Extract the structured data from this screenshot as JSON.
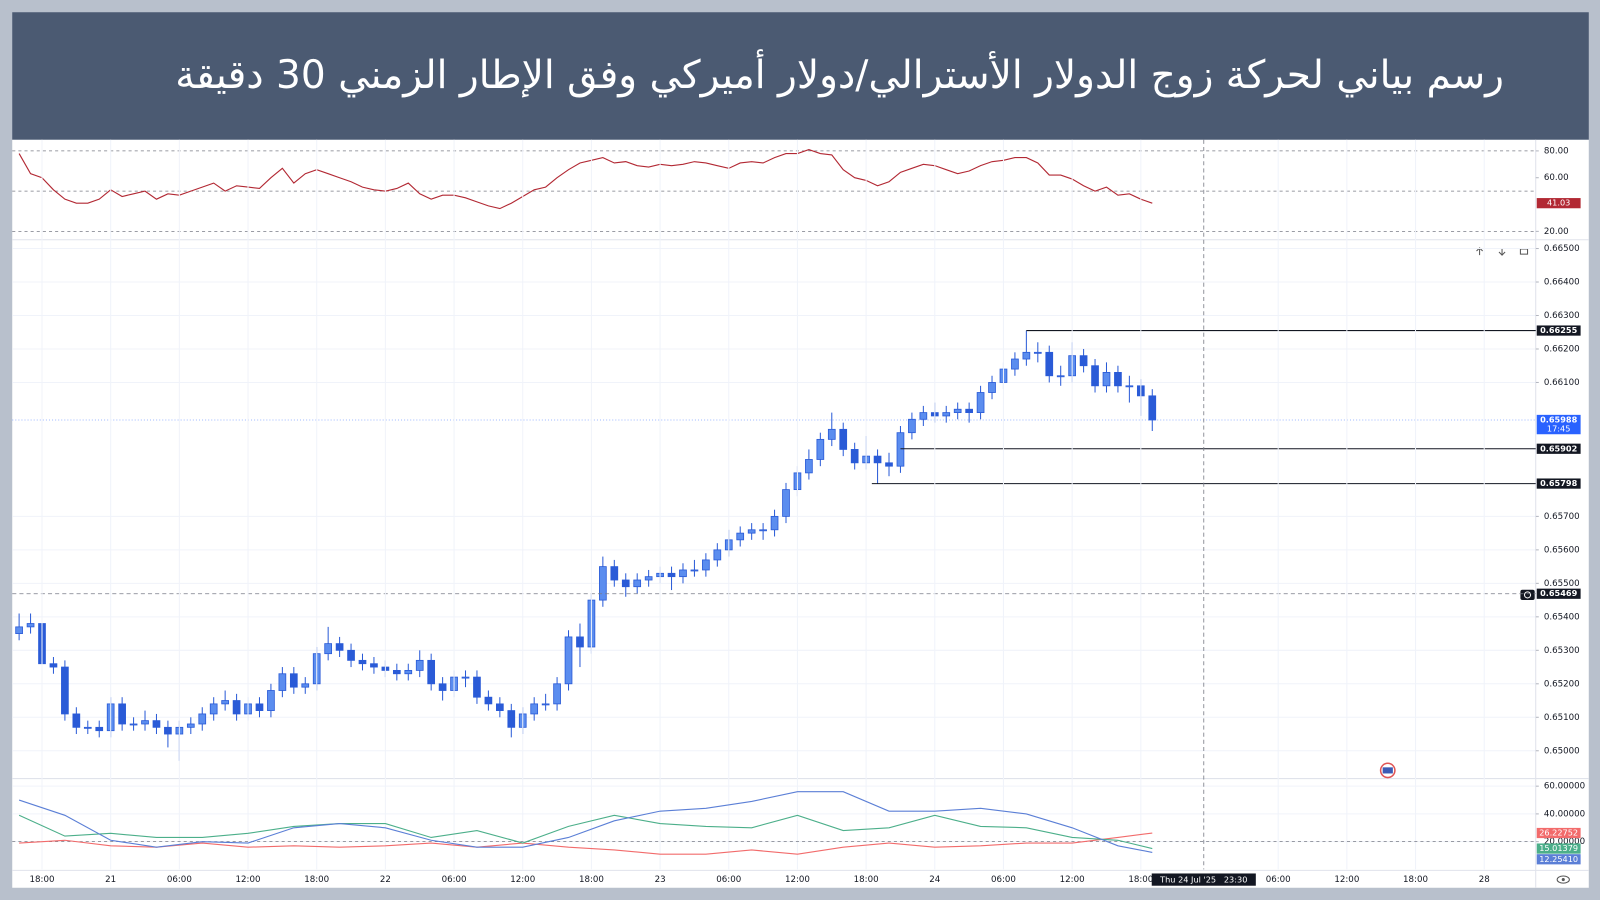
{
  "chart_data": [
    {
      "type": "candlestick",
      "title": "رسم بياني لحركة زوج الدولار الأسترالي/دولار أميركي وفق الإطار الزمني 30 دقيقة",
      "x": [
        -2,
        -1,
        0,
        1,
        2,
        3,
        4,
        5,
        6,
        7,
        8,
        9,
        10,
        11,
        12,
        13,
        14,
        15,
        16,
        17,
        18,
        19,
        20,
        21,
        22,
        23,
        24,
        25,
        26,
        27,
        28,
        29,
        30,
        31,
        32,
        33,
        34,
        35,
        36,
        37,
        38,
        39,
        40,
        41,
        42,
        43,
        44,
        45,
        46,
        47,
        48,
        49,
        50,
        51,
        52,
        53,
        54,
        55,
        56,
        57,
        58,
        59,
        60,
        61,
        62,
        63,
        64,
        65,
        66,
        67,
        68,
        69,
        70,
        71,
        72,
        73,
        74,
        75,
        76,
        77,
        78,
        79,
        80,
        81,
        82,
        83,
        84,
        85,
        86,
        87,
        88,
        89,
        90,
        91,
        92,
        93,
        94,
        95,
        96,
        97
      ],
      "open": [
        0.6535,
        0.6537,
        0.6538,
        0.6526,
        0.6525,
        0.6511,
        0.6507,
        0.6507,
        0.6506,
        0.6514,
        0.6508,
        0.6508,
        0.6509,
        0.6507,
        0.6505,
        0.6507,
        0.6508,
        0.6511,
        0.6514,
        0.6515,
        0.6511,
        0.6514,
        0.6512,
        0.6518,
        0.6523,
        0.6519,
        0.652,
        0.6529,
        0.6532,
        0.653,
        0.6527,
        0.6526,
        0.6525,
        0.6524,
        0.6523,
        0.6524,
        0.6527,
        0.652,
        0.6518,
        0.6522,
        0.6522,
        0.6516,
        0.6514,
        0.6512,
        0.6507,
        0.6511,
        0.6514,
        0.6514,
        0.652,
        0.6534,
        0.6531,
        0.6545,
        0.6555,
        0.6551,
        0.6549,
        0.6551,
        0.6552,
        0.6553,
        0.6552,
        0.6554,
        0.6554,
        0.6557,
        0.656,
        0.6563,
        0.6565,
        0.6566,
        0.6566,
        0.657,
        0.6578,
        0.6583,
        0.6587,
        0.6593,
        0.6596,
        0.659,
        0.6586,
        0.6588,
        0.6586,
        0.6585,
        0.6595,
        0.6599,
        0.6601,
        0.66,
        0.6601,
        0.6602,
        0.6601,
        0.6607,
        0.661,
        0.6614,
        0.6617,
        0.6619,
        0.6619,
        0.6612,
        0.6612,
        0.6618,
        0.6615,
        0.6609,
        0.6613,
        0.6609,
        0.6609,
        0.6606
      ],
      "high": [
        0.6541,
        0.6541,
        0.654,
        0.6528,
        0.6527,
        0.6513,
        0.6509,
        0.6509,
        0.6516,
        0.6516,
        0.651,
        0.6512,
        0.6511,
        0.6509,
        0.6509,
        0.651,
        0.6513,
        0.6516,
        0.6518,
        0.6517,
        0.6516,
        0.6516,
        0.652,
        0.6525,
        0.6525,
        0.6522,
        0.6531,
        0.6537,
        0.6534,
        0.6532,
        0.6529,
        0.6528,
        0.6527,
        0.6526,
        0.6526,
        0.653,
        0.6529,
        0.6522,
        0.6524,
        0.6524,
        0.6524,
        0.6518,
        0.6516,
        0.6514,
        0.6513,
        0.6516,
        0.6517,
        0.6522,
        0.6536,
        0.6538,
        0.6547,
        0.6558,
        0.6557,
        0.6553,
        0.6553,
        0.6554,
        0.6555,
        0.6555,
        0.6556,
        0.6557,
        0.6559,
        0.6562,
        0.6566,
        0.6567,
        0.6568,
        0.6568,
        0.6572,
        0.658,
        0.6585,
        0.659,
        0.6595,
        0.6601,
        0.6598,
        0.6592,
        0.6594,
        0.659,
        0.6589,
        0.6597,
        0.6601,
        0.6603,
        0.6604,
        0.6603,
        0.6604,
        0.6604,
        0.6609,
        0.6612,
        0.6616,
        0.6619,
        0.66255,
        0.6622,
        0.6621,
        0.6615,
        0.6622,
        0.662,
        0.6617,
        0.6616,
        0.6615,
        0.6612,
        0.6611,
        0.6608
      ],
      "low": [
        0.6533,
        0.6535,
        0.6524,
        0.6523,
        0.6509,
        0.6505,
        0.6505,
        0.6504,
        0.6504,
        0.6506,
        0.6506,
        0.6506,
        0.6505,
        0.6501,
        0.6497,
        0.6505,
        0.6506,
        0.6509,
        0.6512,
        0.6509,
        0.6509,
        0.651,
        0.651,
        0.6516,
        0.6517,
        0.6517,
        0.6518,
        0.6527,
        0.6528,
        0.6525,
        0.6524,
        0.6523,
        0.6522,
        0.6521,
        0.6521,
        0.6522,
        0.6518,
        0.6515,
        0.6516,
        0.6519,
        0.6514,
        0.6512,
        0.651,
        0.6504,
        0.6505,
        0.6509,
        0.6512,
        0.6512,
        0.6518,
        0.6525,
        0.6529,
        0.6543,
        0.6549,
        0.6546,
        0.6547,
        0.6549,
        0.655,
        0.6548,
        0.655,
        0.6552,
        0.6552,
        0.6555,
        0.6558,
        0.6561,
        0.6563,
        0.6563,
        0.6564,
        0.6568,
        0.6576,
        0.6581,
        0.6585,
        0.6591,
        0.6588,
        0.6584,
        0.6584,
        0.65798,
        0.6582,
        0.6583,
        0.6593,
        0.6597,
        0.6598,
        0.6598,
        0.6599,
        0.6598,
        0.6599,
        0.6605,
        0.6608,
        0.6612,
        0.6615,
        0.6616,
        0.661,
        0.6609,
        0.661,
        0.6613,
        0.6607,
        0.6607,
        0.6607,
        0.6604,
        0.66,
        0.65955
      ],
      "close": [
        0.6537,
        0.6538,
        0.6526,
        0.6525,
        0.6511,
        0.6507,
        0.6507,
        0.6506,
        0.6514,
        0.6508,
        0.6508,
        0.6509,
        0.6507,
        0.6505,
        0.6507,
        0.6508,
        0.6511,
        0.6514,
        0.6515,
        0.6511,
        0.6514,
        0.6512,
        0.6518,
        0.6523,
        0.6519,
        0.652,
        0.6529,
        0.6532,
        0.653,
        0.6527,
        0.6526,
        0.6525,
        0.6524,
        0.6523,
        0.6524,
        0.6527,
        0.652,
        0.6518,
        0.6522,
        0.6522,
        0.6516,
        0.6514,
        0.6512,
        0.6507,
        0.6511,
        0.6514,
        0.6514,
        0.652,
        0.6534,
        0.6531,
        0.6545,
        0.6555,
        0.6551,
        0.6549,
        0.6551,
        0.6552,
        0.6553,
        0.6552,
        0.6554,
        0.6554,
        0.6557,
        0.656,
        0.6563,
        0.6565,
        0.6566,
        0.6566,
        0.657,
        0.6578,
        0.6583,
        0.6587,
        0.6593,
        0.6596,
        0.659,
        0.6586,
        0.6588,
        0.6586,
        0.6585,
        0.6595,
        0.6599,
        0.6601,
        0.66,
        0.6601,
        0.6602,
        0.6601,
        0.6607,
        0.661,
        0.6614,
        0.6617,
        0.6619,
        0.6619,
        0.6612,
        0.6612,
        0.6618,
        0.6615,
        0.6609,
        0.6613,
        0.6609,
        0.6609,
        0.6606,
        0.65988
      ],
      "up_color": "#5b8def",
      "down_color": "#2a5bd7",
      "xlim": [
        -2.6,
        130.5
      ],
      "ylim": [
        0.6492,
        0.6652
      ],
      "yticks": [
        {
          "value": 0.665,
          "label": "0.66500"
        },
        {
          "value": 0.664,
          "label": "0.66400"
        },
        {
          "value": 0.663,
          "label": "0.66300"
        },
        {
          "value": 0.662,
          "label": "0.66200"
        },
        {
          "value": 0.661,
          "label": "0.66100"
        },
        {
          "value": 0.657,
          "label": "0.65700"
        },
        {
          "value": 0.656,
          "label": "0.65600"
        },
        {
          "value": 0.655,
          "label": "0.65500"
        },
        {
          "value": 0.654,
          "label": "0.65400"
        },
        {
          "value": 0.653,
          "label": "0.65300"
        },
        {
          "value": 0.652,
          "label": "0.65200"
        },
        {
          "value": 0.651,
          "label": "0.65100"
        },
        {
          "value": 0.65,
          "label": "0.65000"
        }
      ],
      "grid": true,
      "levels": [
        {
          "value": 0.66255,
          "label": "0.66255",
          "x": 86
        },
        {
          "value": 0.65902,
          "label": "0.65902",
          "x": 75
        },
        {
          "value": 0.65798,
          "label": "0.65798",
          "x": 72.5
        }
      ],
      "alert": {
        "value": 0.65469,
        "label": "0.65469"
      },
      "last_price": {
        "value": 0.65988,
        "label": "0.65988",
        "countdown": "17:45",
        "color": "#2962ff"
      }
    },
    {
      "type": "line",
      "x": [
        -2,
        -1,
        0,
        1,
        2,
        3,
        4,
        5,
        6,
        7,
        8,
        9,
        10,
        11,
        12,
        13,
        14,
        15,
        16,
        17,
        18,
        19,
        20,
        21,
        22,
        23,
        24,
        25,
        26,
        27,
        28,
        29,
        30,
        31,
        32,
        33,
        34,
        35,
        36,
        37,
        38,
        39,
        40,
        41,
        42,
        43,
        44,
        45,
        46,
        47,
        48,
        49,
        50,
        51,
        52,
        53,
        54,
        55,
        56,
        57,
        58,
        59,
        60,
        61,
        62,
        63,
        64,
        65,
        66,
        67,
        68,
        69,
        70,
        71,
        72,
        73,
        74,
        75,
        76,
        77,
        78,
        79,
        80,
        81,
        82,
        83,
        84,
        85,
        86,
        87,
        88,
        89,
        90,
        91,
        92,
        93,
        94,
        95,
        96,
        97
      ],
      "series": [
        {
          "color": "#b22833",
          "values": [
            78,
            63,
            60,
            51,
            44,
            41,
            41,
            44,
            51,
            46,
            48,
            50,
            44,
            48,
            47,
            50,
            53,
            56,
            50,
            54,
            53,
            52,
            60,
            67,
            56,
            63,
            66,
            63,
            60,
            57,
            53,
            51,
            50,
            52,
            56,
            48,
            44,
            47,
            47,
            45,
            42,
            39,
            37,
            41,
            46,
            51,
            53,
            60,
            66,
            71,
            73,
            75,
            71,
            72,
            69,
            68,
            70,
            69,
            70,
            72,
            71,
            69,
            67,
            71,
            72,
            71,
            75,
            78,
            78,
            81,
            78,
            77,
            66,
            60,
            58,
            54,
            57,
            64,
            67,
            70,
            69,
            66,
            63,
            65,
            69,
            72,
            73,
            75,
            75,
            71,
            62,
            62,
            59,
            54,
            50,
            53,
            47,
            48,
            44,
            41.03
          ]
        }
      ],
      "xlim": [
        -2.6,
        130.5
      ],
      "ylim": [
        16,
        86
      ],
      "yticks": [
        {
          "value": 80,
          "label": "80.00"
        },
        {
          "value": 60,
          "label": "60.00"
        },
        {
          "value": 20,
          "label": "20.00"
        }
      ],
      "bands": [
        80,
        50,
        20
      ],
      "grid": false
    },
    {
      "type": "line",
      "x": [
        -2,
        2,
        6,
        10,
        14,
        18,
        22,
        26,
        30,
        34,
        38,
        42,
        46,
        50,
        54,
        58,
        62,
        66,
        70,
        74,
        78,
        82,
        86,
        90,
        94,
        97
      ],
      "series": [
        {
          "color": "#f26b6b",
          "values": [
            19,
            21,
            17,
            16,
            19,
            16,
            17,
            16,
            17,
            19,
            16,
            19,
            16,
            14,
            11,
            11,
            14,
            11,
            16,
            19,
            16,
            17,
            19,
            19,
            23,
            26.22752
          ]
        },
        {
          "color": "#4caf8a",
          "values": [
            39,
            24,
            26,
            23,
            23,
            26,
            31,
            33,
            33,
            23,
            28,
            19,
            31,
            39,
            33,
            31,
            30,
            39,
            28,
            30,
            39,
            31,
            30,
            23,
            21,
            15.01379
          ]
        },
        {
          "color": "#5b7fd6",
          "values": [
            50,
            39,
            21,
            16,
            20,
            19,
            30,
            33,
            30,
            21,
            16,
            16,
            23,
            35,
            42,
            44,
            49,
            56,
            56,
            42,
            42,
            44,
            40,
            30,
            17,
            12.2541
          ],
          "value_labels": [
            null,
            null,
            null,
            null,
            null,
            null,
            null,
            null,
            null,
            null,
            null,
            null,
            null,
            null,
            null,
            null,
            null,
            null,
            null,
            null,
            null,
            null,
            null,
            null,
            null,
            "12.25410"
          ]
        }
      ],
      "xlim": [
        -2.6,
        130.5
      ],
      "ylim": [
        0,
        64
      ],
      "yticks": [
        {
          "value": 60,
          "label": "60.00000"
        },
        {
          "value": 40,
          "label": "40.00000"
        },
        {
          "value": 20,
          "label": "20.00000"
        }
      ],
      "bands": [
        20
      ],
      "grid": true,
      "xticks": [
        {
          "value": 0,
          "label": "18:00"
        },
        {
          "value": 6,
          "label": "21"
        },
        {
          "value": 12,
          "label": "06:00"
        },
        {
          "value": 18,
          "label": "12:00"
        },
        {
          "value": 24,
          "label": "18:00"
        },
        {
          "value": 30,
          "label": "22"
        },
        {
          "value": 36,
          "label": "06:00"
        },
        {
          "value": 42,
          "label": "12:00"
        },
        {
          "value": 48,
          "label": "18:00"
        },
        {
          "value": 54,
          "label": "23"
        },
        {
          "value": 60,
          "label": "06:00"
        },
        {
          "value": 66,
          "label": "12:00"
        },
        {
          "value": 72,
          "label": "18:00"
        },
        {
          "value": 78,
          "label": "24"
        },
        {
          "value": 84,
          "label": "06:00"
        },
        {
          "value": 90,
          "label": "12:00"
        },
        {
          "value": 96,
          "label": "18:00"
        },
        {
          "value": 108,
          "label": "06:00"
        },
        {
          "value": 114,
          "label": "12:00"
        },
        {
          "value": 120,
          "label": "18:00"
        },
        {
          "value": 126,
          "label": "28"
        }
      ],
      "crosshair": {
        "x": 101.5,
        "label": "Thu 24 Jul '25   23:30"
      }
    }
  ]
}
